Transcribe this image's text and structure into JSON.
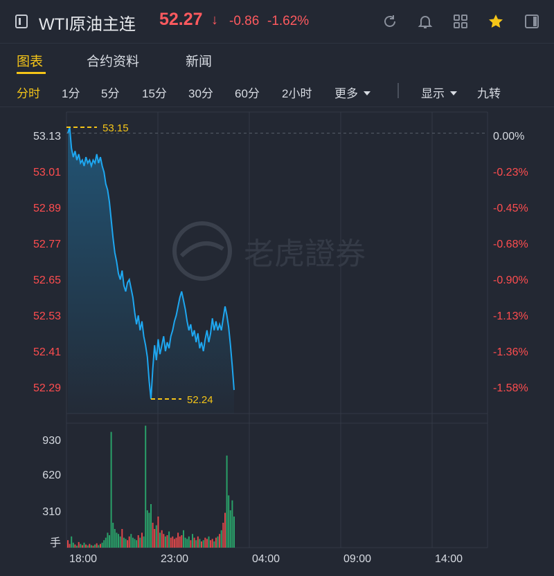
{
  "header": {
    "title": "WTI原油主连",
    "price": "52.27",
    "arrow": "↓",
    "change": "-0.86",
    "change_pct": "-1.62%",
    "icons": [
      "refresh-icon",
      "bell-icon",
      "grid-icon",
      "star-icon",
      "sidebar-icon"
    ]
  },
  "tabs": [
    "图表",
    "合约资料",
    "新闻"
  ],
  "periods": {
    "items": [
      "分时",
      "1分",
      "5分",
      "15分",
      "30分",
      "60分",
      "2小时"
    ],
    "more": "更多",
    "display": "显示",
    "nine_turn": "九转"
  },
  "watermark": "老虎證券",
  "chart_data": {
    "type": "line",
    "price_ticks": [
      "53.13",
      "53.01",
      "52.89",
      "52.77",
      "52.65",
      "52.53",
      "52.41",
      "52.29"
    ],
    "pct_ticks": [
      "0.00%",
      "-0.23%",
      "-0.45%",
      "-0.68%",
      "-0.90%",
      "-1.13%",
      "-1.36%",
      "-1.58%"
    ],
    "volume_ticks": [
      "930",
      "620",
      "310",
      "手"
    ],
    "time_ticks": [
      "18:00",
      "23:00",
      "04:00",
      "09:00",
      "14:00"
    ],
    "high_label": "53.15",
    "low_label": "52.24",
    "ylim": [
      52.24,
      53.15
    ],
    "prev_close": 53.13,
    "colors": {
      "line": "#1ea7f0",
      "up": "#ff4d4f",
      "down": "#2bb673",
      "ref": "#f5c518",
      "axis_red": "#ff4d4f"
    },
    "series": [
      {
        "values": [
          53.13,
          53.15,
          53.08,
          53.05,
          53.07,
          53.04,
          53.06,
          53.03,
          53.04,
          53.02,
          53.05,
          53.03,
          53.04,
          53.02,
          53.04,
          53.03,
          53.06,
          53.03,
          53.05,
          53.02,
          53.0,
          52.96,
          52.94,
          52.9,
          52.84,
          52.78,
          52.73,
          52.7,
          52.66,
          52.64,
          52.67,
          52.62,
          52.6,
          52.63,
          52.64,
          52.61,
          52.58,
          52.53,
          52.49,
          52.52,
          52.47,
          52.5,
          52.45,
          52.42,
          52.38,
          52.3,
          52.24,
          52.34,
          52.42,
          52.37,
          52.44,
          52.39,
          52.42,
          52.45,
          52.4,
          52.43,
          52.41,
          52.45,
          52.47,
          52.5,
          52.52,
          52.55,
          52.58,
          52.6,
          52.57,
          52.54,
          52.5,
          52.47,
          52.49,
          52.45,
          52.47,
          52.43,
          52.46,
          52.41,
          52.43,
          52.4,
          52.44,
          52.47,
          52.43,
          52.46,
          52.51,
          52.47,
          52.5,
          52.47,
          52.49,
          52.47,
          52.51,
          52.55,
          52.52,
          52.48,
          52.42,
          52.35,
          52.27
        ]
      }
    ],
    "volume": [
      60,
      30,
      90,
      40,
      25,
      15,
      45,
      30,
      20,
      40,
      25,
      18,
      30,
      20,
      15,
      25,
      35,
      20,
      30,
      40,
      60,
      80,
      120,
      100,
      930,
      200,
      150,
      120,
      110,
      90,
      150,
      80,
      70,
      60,
      90,
      110,
      80,
      70,
      60,
      100,
      80,
      120,
      90,
      980,
      300,
      280,
      350,
      200,
      150,
      180,
      250,
      120,
      140,
      110,
      90,
      100,
      130,
      80,
      90,
      70,
      80,
      120,
      90,
      100,
      140,
      80,
      70,
      90,
      60,
      110,
      80,
      60,
      90,
      70,
      50,
      60,
      80,
      70,
      90,
      60,
      70,
      50,
      80,
      90,
      110,
      140,
      200,
      280,
      740,
      420,
      300,
      380,
      250
    ]
  }
}
